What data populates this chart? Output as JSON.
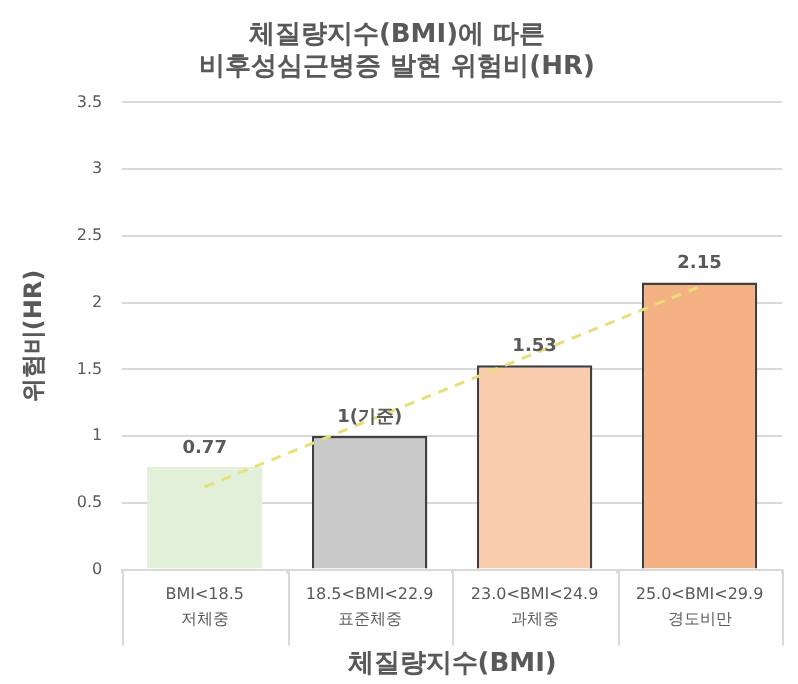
{
  "chart_data": {
    "type": "bar",
    "title": "체질량지수(BMI)에 따른\n비후성심근병증 발현 위험비(HR)",
    "xlabel": "체질량지수(BMI)",
    "ylabel": "위험비(HR)",
    "categories": [
      "BMI<18.5\n저체중",
      "18.5<BMI<22.9\n표준체중",
      "23.0<BMI<24.9\n과체중",
      "25.0<BMI<29.9\n경도비만"
    ],
    "series": [
      {
        "values": [
          0.77,
          1,
          1.53,
          2.15
        ],
        "colors": [
          "#e2efd9",
          "#c9c9c9",
          "#f8cbad",
          "#f4b183"
        ],
        "value_labels": [
          "0.77",
          "1(기준)",
          "1.53",
          "2.15"
        ]
      },
      {
        "type": "line",
        "color": "#e6df7a",
        "line_style": "dashed",
        "values": [
          0.62,
          1.12,
          1.62,
          2.12
        ]
      }
    ],
    "ylim": [
      0,
      3.5
    ],
    "yticks": [
      0,
      0.5,
      1,
      1.5,
      2,
      2.5,
      3,
      3.5
    ],
    "grid": "y",
    "legend": false
  }
}
